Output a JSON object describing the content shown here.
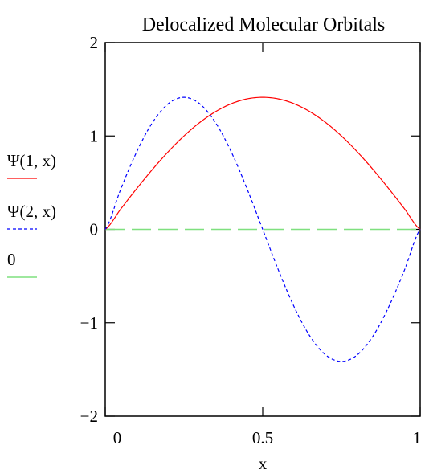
{
  "chart_data": {
    "type": "line",
    "title": "Delocalized Molecular Orbitals",
    "xlabel": "x",
    "ylabel": "",
    "xlim": [
      0,
      1
    ],
    "ylim": [
      -2,
      2
    ],
    "xticks": [
      0,
      0.5,
      1
    ],
    "xtick_labels": [
      "0",
      "0.5",
      "1"
    ],
    "yticks": [
      -2,
      -1,
      0,
      1,
      2
    ],
    "ytick_labels": [
      "−2",
      "−1",
      "0",
      "1",
      "2"
    ],
    "grid": false,
    "legend_position": "left",
    "x": [
      0,
      0.05,
      0.1,
      0.15,
      0.2,
      0.25,
      0.3,
      0.35,
      0.4,
      0.45,
      0.5,
      0.55,
      0.6,
      0.65,
      0.7,
      0.75,
      0.8,
      0.85,
      0.9,
      0.95,
      1
    ],
    "series": [
      {
        "name": "Ψ(1, x)",
        "color": "#ff0000",
        "dash": "solid",
        "values": [
          0,
          0.221,
          0.437,
          0.642,
          0.831,
          1.0,
          1.144,
          1.26,
          1.345,
          1.397,
          1.414,
          1.397,
          1.345,
          1.26,
          1.144,
          1.0,
          0.831,
          0.642,
          0.437,
          0.221,
          0
        ]
      },
      {
        "name": "Ψ(2, x)",
        "color": "#0000ff",
        "dash": "short-dash",
        "values": [
          0,
          0.437,
          0.831,
          1.144,
          1.345,
          1.414,
          1.345,
          1.144,
          0.831,
          0.437,
          0,
          -0.437,
          -0.831,
          -1.144,
          -1.345,
          -1.414,
          -1.345,
          -1.144,
          -0.831,
          -0.437,
          0
        ]
      },
      {
        "name": "0",
        "color": "#7fe07f",
        "dash": "long-dash",
        "values": [
          0,
          0,
          0,
          0,
          0,
          0,
          0,
          0,
          0,
          0,
          0,
          0,
          0,
          0,
          0,
          0,
          0,
          0,
          0,
          0,
          0
        ]
      }
    ]
  }
}
